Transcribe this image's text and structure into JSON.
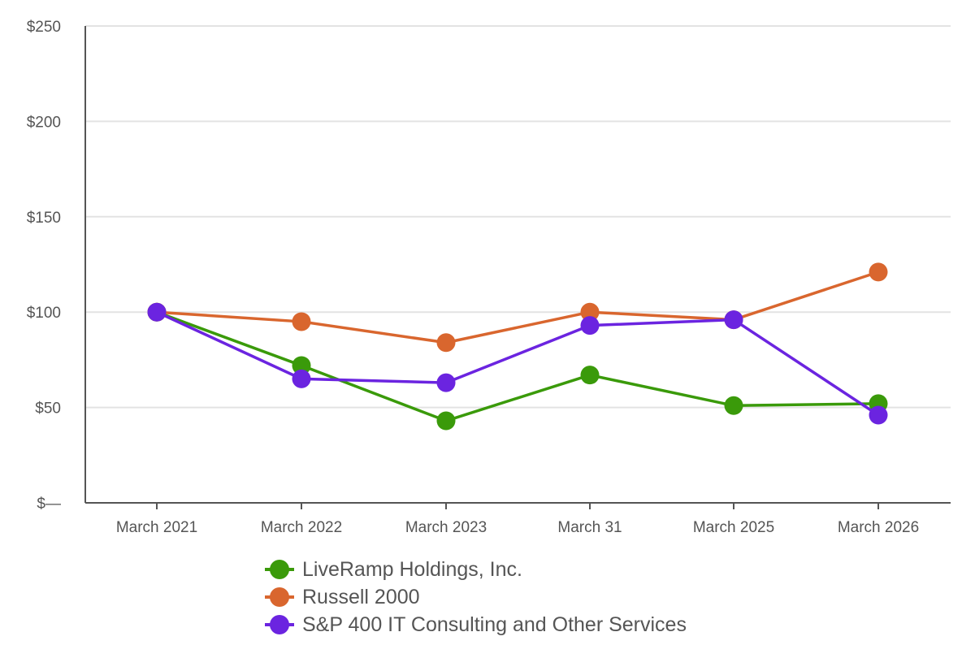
{
  "chart_data": {
    "type": "line",
    "categories": [
      "March 2021",
      "March 2022",
      "March 2023",
      "March 31",
      "March 2025",
      "March 2026"
    ],
    "y_tick_labels": [
      "$—",
      "$50",
      "$100",
      "$150",
      "$200",
      "$250"
    ],
    "ylim": [
      0,
      250
    ],
    "y_ticks": [
      0,
      50,
      100,
      150,
      200,
      250
    ],
    "grid": true,
    "legend_position": "bottom",
    "series": [
      {
        "name": "LiveRamp Holdings, Inc.",
        "color": "#3a9a0a",
        "values": [
          100,
          72,
          43,
          67,
          51,
          52
        ]
      },
      {
        "name": "Russell 2000",
        "color": "#d9662e",
        "values": [
          100,
          95,
          84,
          100,
          96,
          121
        ]
      },
      {
        "name": "S&P 400 IT Consulting and Other Services",
        "color": "#6b24e0",
        "values": [
          100,
          65,
          63,
          93,
          96,
          46
        ]
      }
    ]
  }
}
